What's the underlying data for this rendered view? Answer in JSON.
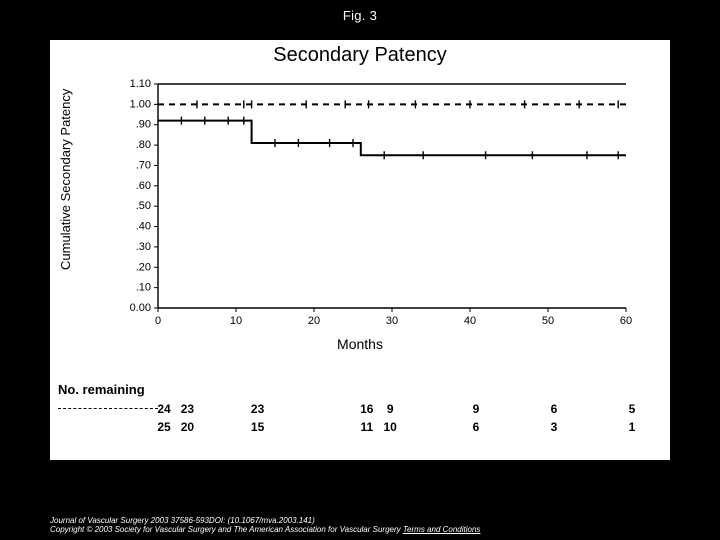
{
  "figure_label": "Fig. 3",
  "chart": {
    "type": "line",
    "title": "Secondary Patency",
    "title_fontsize": 20,
    "xlabel": "Months",
    "ylabel": "Cumulative Secondary Patency",
    "label_fontsize": 13,
    "tick_fontsize": 11,
    "background_color": "#ffffff",
    "axis_color": "#000000",
    "xlim": [
      0,
      60
    ],
    "ylim": [
      0.0,
      1.1
    ],
    "xticks": [
      0,
      10,
      20,
      30,
      40,
      50,
      60
    ],
    "yticks": [
      0.0,
      0.1,
      0.2,
      0.3,
      0.4,
      0.5,
      0.6,
      0.7,
      0.8,
      0.9,
      1.0,
      1.1
    ],
    "ytick_labels": [
      "0.00",
      ".10",
      ".20",
      ".30",
      ".40",
      ".50",
      ".60",
      ".70",
      ".80",
      ".90",
      "1.00",
      "1.10"
    ],
    "series": [
      {
        "name": "dashed",
        "style": "dashed",
        "color": "#000000",
        "line_width": 2,
        "points": [
          [
            0,
            1.0
          ],
          [
            60,
            1.0
          ]
        ],
        "censor_x": [
          5,
          11,
          12,
          19,
          24,
          27,
          33,
          40,
          47,
          54,
          59
        ]
      },
      {
        "name": "solid",
        "style": "solid",
        "color": "#000000",
        "line_width": 2,
        "points": [
          [
            0,
            0.92
          ],
          [
            12,
            0.92
          ],
          [
            12,
            0.81
          ],
          [
            26,
            0.81
          ],
          [
            26,
            0.75
          ],
          [
            60,
            0.75
          ]
        ],
        "censor_x": [
          3,
          6,
          9,
          11,
          15,
          18,
          22,
          25,
          29,
          34,
          42,
          48,
          55,
          59
        ]
      }
    ]
  },
  "no_remaining": {
    "label": "No. remaining",
    "x_positions": [
      0,
      3,
      12,
      26,
      29,
      40,
      50,
      60
    ],
    "rows": [
      [
        "24",
        "23",
        "23",
        "16",
        "9",
        "9",
        "6",
        "5"
      ],
      [
        "25",
        "20",
        "15",
        "11",
        "10",
        "6",
        "3",
        "1"
      ]
    ]
  },
  "citation": {
    "journal": "Journal of Vascular Surgery",
    "ref": "2003 37586-593DOI: (10.1067/mva.2003.141)",
    "copyright": "Copyright © 2003 Society for Vascular Surgery and The American Association for Vascular Surgery",
    "terms": "Terms and Conditions"
  }
}
